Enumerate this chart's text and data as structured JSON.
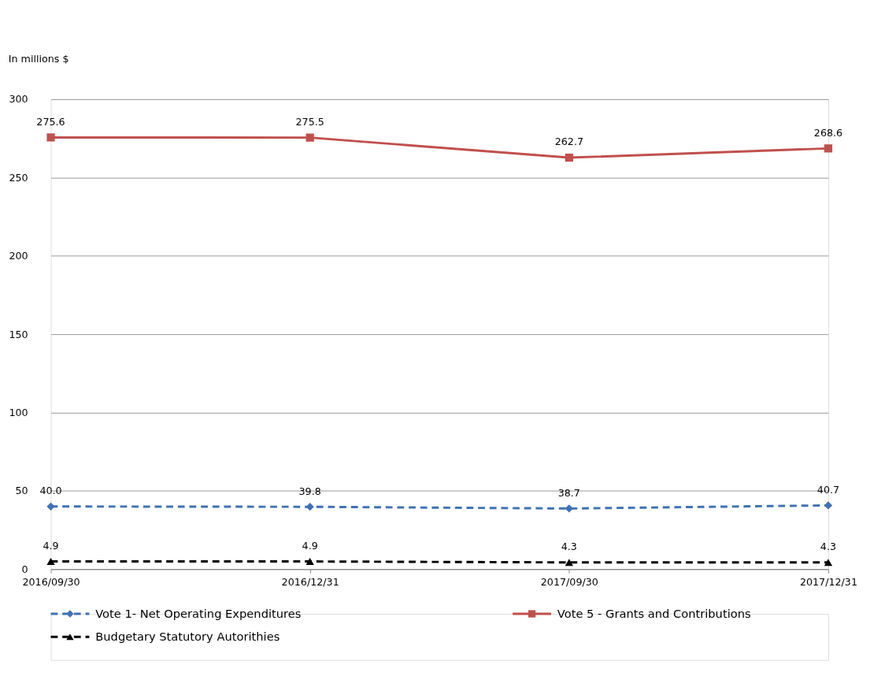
{
  "chart_data": {
    "type": "line",
    "ylabel": "In millions $",
    "categories": [
      "2016/09/30",
      "2016/12/31",
      "2017/09/30",
      "2017/12/31"
    ],
    "series": [
      {
        "name": "Vote 1- Net Operating Expenditures",
        "color": "#3f72b5",
        "values": [
          40.0,
          39.8,
          38.7,
          40.7
        ],
        "value_labels": [
          "40.0",
          "39.8",
          "38.7",
          "40.7"
        ],
        "marker": "diamond",
        "line_style": "dashed"
      },
      {
        "name": "Vote 5 - Grants and Contributions",
        "color": "#c0504d",
        "values": [
          275.6,
          275.5,
          262.7,
          268.6
        ],
        "value_labels": [
          "275.6",
          "275.5",
          "262.7",
          "268.6"
        ],
        "marker": "square",
        "line_style": "solid"
      },
      {
        "name": "Budgetary Statutory Autorithies",
        "color": "#000000",
        "values": [
          4.9,
          4.9,
          4.3,
          4.3
        ],
        "value_labels": [
          "4.9",
          "4.9",
          "4.3",
          "4.3"
        ],
        "marker": "triangle",
        "line_style": "dashed"
      }
    ],
    "ylim": [
      0,
      300
    ],
    "yticks": [
      0,
      50,
      100,
      150,
      200,
      250,
      300
    ],
    "grid": "y",
    "legend": "bottom"
  }
}
